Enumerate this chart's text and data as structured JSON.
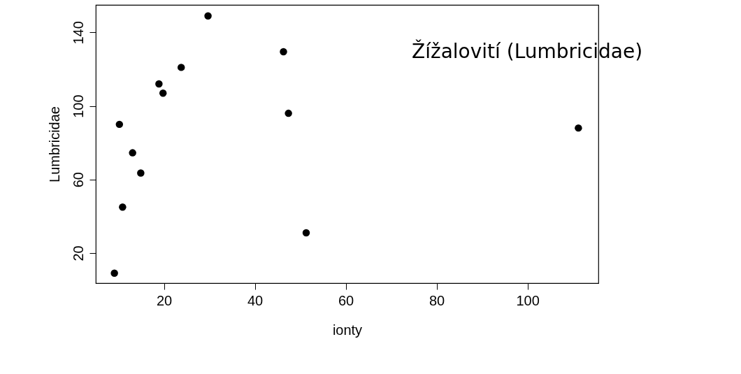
{
  "chart_data": {
    "type": "scatter",
    "xlabel": "ionty",
    "ylabel": "Lumbricidae",
    "x": [
      9.1,
      10.2,
      10.9,
      13.1,
      14.9,
      18.9,
      19.8,
      23.8,
      29.7,
      46.3,
      47.4,
      51.3,
      111.2
    ],
    "values": [
      9,
      90,
      45,
      74.5,
      63.5,
      112,
      107,
      121,
      149,
      129.5,
      96,
      31,
      88
    ],
    "color": "#000000",
    "marker": "circle",
    "grid": false,
    "xlim": [
      5,
      115.6
    ],
    "ylim": [
      3.6,
      155
    ],
    "xticks": [
      20,
      40,
      60,
      80,
      100
    ],
    "yticks": [
      20,
      60,
      100,
      140
    ],
    "annotations": [
      "Žížalovití (Lumbricidae)"
    ]
  }
}
